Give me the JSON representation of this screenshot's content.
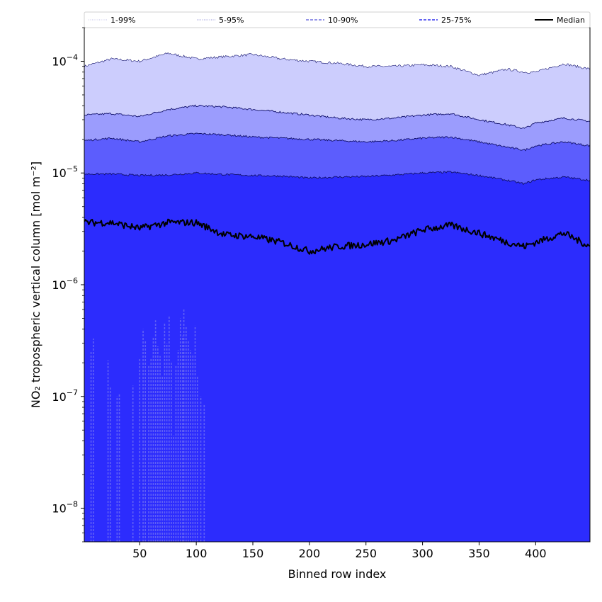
{
  "chart_data": {
    "type": "area",
    "title": "",
    "xlabel": "Binned row index",
    "ylabel": "NO₂ tropospheric vertical column [mol m⁻²]",
    "xlim": [
      1,
      448
    ],
    "ylim": [
      5e-09,
      0.0002
    ],
    "yscale": "log",
    "grid": false,
    "legend_position": "top",
    "x_ticks": [
      50,
      100,
      150,
      200,
      250,
      300,
      350,
      400
    ],
    "y_ticks": [
      {
        "value": 1e-08,
        "base": "10",
        "exp": "−8"
      },
      {
        "value": 1e-07,
        "base": "10",
        "exp": "−7"
      },
      {
        "value": 1e-06,
        "base": "10",
        "exp": "−6"
      },
      {
        "value": 1e-05,
        "base": "10",
        "exp": "−5"
      },
      {
        "value": 0.0001,
        "base": "10",
        "exp": "−4"
      }
    ],
    "legend": [
      {
        "label": "1-99%",
        "style": "dotted",
        "color": "#c0c0e8"
      },
      {
        "label": "5-95%",
        "style": "dotted",
        "color": "#9090d8"
      },
      {
        "label": "10-90%",
        "style": "dashed",
        "color": "#7070e0"
      },
      {
        "label": "25-75%",
        "style": "dashed",
        "color": "#3030ee"
      },
      {
        "label": "Median",
        "style": "solid",
        "color": "#000000"
      }
    ],
    "colors": {
      "band_1_99": "#cccdfd",
      "band_5_95": "#9b9cfd",
      "band_10_90": "#5c5dfd",
      "band_25_75": "#2c2cfd",
      "spikes": "#6060f5"
    },
    "x": [
      1,
      25,
      50,
      75,
      100,
      125,
      150,
      175,
      200,
      225,
      250,
      275,
      300,
      325,
      350,
      375,
      390,
      400,
      425,
      448
    ],
    "series": [
      {
        "name": "99%",
        "values": [
          9e-05,
          0.000105,
          0.0001,
          0.000118,
          0.000105,
          0.00011,
          0.000115,
          0.000105,
          0.0001,
          9.6e-05,
          9e-05,
          9e-05,
          9.3e-05,
          9e-05,
          7.5e-05,
          8.5e-05,
          8e-05,
          8e-05,
          9.5e-05,
          8.5e-05
        ]
      },
      {
        "name": "95%",
        "values": [
          3.3e-05,
          3.4e-05,
          3.2e-05,
          3.7e-05,
          4e-05,
          3.9e-05,
          3.7e-05,
          3.5e-05,
          3.3e-05,
          3.1e-05,
          3e-05,
          3.1e-05,
          3.3e-05,
          3.4e-05,
          3e-05,
          2.7e-05,
          2.5e-05,
          2.8e-05,
          3.1e-05,
          2.9e-05
        ]
      },
      {
        "name": "90%",
        "values": [
          1.95e-05,
          2.05e-05,
          1.9e-05,
          2.15e-05,
          2.25e-05,
          2.2e-05,
          2.1e-05,
          2.05e-05,
          2e-05,
          1.95e-05,
          1.9e-05,
          1.95e-05,
          2.05e-05,
          2.1e-05,
          1.9e-05,
          1.7e-05,
          1.6e-05,
          1.75e-05,
          1.9e-05,
          1.75e-05
        ]
      },
      {
        "name": "75%",
        "values": [
          9.8e-06,
          9.8e-06,
          9.5e-06,
          9.6e-06,
          1e-05,
          9.7e-06,
          9.5e-06,
          9.4e-06,
          9e-06,
          9.2e-06,
          9.3e-06,
          9.6e-06,
          1e-05,
          1.02e-05,
          9.5e-06,
          8.6e-06,
          8e-06,
          8.7e-06,
          9.2e-06,
          8.6e-06
        ]
      },
      {
        "name": "Median",
        "values": [
          3.6e-06,
          3.6e-06,
          3.2e-06,
          3.6e-06,
          3.6e-06,
          2.8e-06,
          2.7e-06,
          2.4e-06,
          2e-06,
          2.2e-06,
          2.3e-06,
          2.5e-06,
          3.1e-06,
          3.4e-06,
          2.9e-06,
          2.4e-06,
          2.2e-06,
          2.4e-06,
          2.9e-06,
          2.2e-06
        ]
      }
    ],
    "spikes": [
      {
        "x": 7,
        "top": 2.5e-07
      },
      {
        "x": 9,
        "top": 3.3e-07
      },
      {
        "x": 22,
        "top": 2.1e-07
      },
      {
        "x": 24,
        "top": 1.2e-07
      },
      {
        "x": 30,
        "top": 1e-07
      },
      {
        "x": 32,
        "top": 1.05e-07
      },
      {
        "x": 44,
        "top": 1.25e-07
      },
      {
        "x": 50,
        "top": 2.2e-07
      },
      {
        "x": 53,
        "top": 4e-07
      },
      {
        "x": 55,
        "top": 3.2e-07
      },
      {
        "x": 58,
        "top": 1.9e-07
      },
      {
        "x": 60,
        "top": 2.2e-07
      },
      {
        "x": 62,
        "top": 3.4e-07
      },
      {
        "x": 64,
        "top": 4.8e-07
      },
      {
        "x": 66,
        "top": 2.8e-07
      },
      {
        "x": 68,
        "top": 2.3e-07
      },
      {
        "x": 70,
        "top": 1.5e-07
      },
      {
        "x": 72,
        "top": 4.5e-07
      },
      {
        "x": 74,
        "top": 3e-07
      },
      {
        "x": 76,
        "top": 5.2e-07
      },
      {
        "x": 78,
        "top": 2e-07
      },
      {
        "x": 80,
        "top": 4.5e-08
      },
      {
        "x": 82,
        "top": 1.9e-07
      },
      {
        "x": 84,
        "top": 2.6e-07
      },
      {
        "x": 86,
        "top": 5e-07
      },
      {
        "x": 88,
        "top": 3.5e-07
      },
      {
        "x": 89,
        "top": 6e-07
      },
      {
        "x": 91,
        "top": 4.2e-07
      },
      {
        "x": 93,
        "top": 3.2e-07
      },
      {
        "x": 95,
        "top": 2.6e-07
      },
      {
        "x": 97,
        "top": 2.4e-07
      },
      {
        "x": 99,
        "top": 4.3e-07
      },
      {
        "x": 101,
        "top": 1.5e-07
      },
      {
        "x": 104,
        "top": 1e-07
      },
      {
        "x": 107,
        "top": 8.5e-08
      }
    ]
  }
}
